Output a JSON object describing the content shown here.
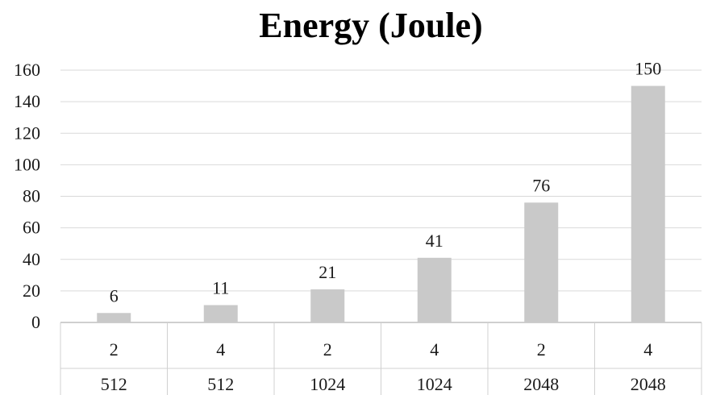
{
  "chart_data": {
    "type": "bar",
    "title": "Energy (Joule)",
    "xlabel": "",
    "ylabel": "",
    "ylim": [
      0,
      160
    ],
    "yticks": [
      0,
      20,
      40,
      60,
      80,
      100,
      120,
      140,
      160
    ],
    "grid": true,
    "legend": "none",
    "category_rows": [
      [
        "2",
        "4",
        "2",
        "4",
        "2",
        "4"
      ],
      [
        "512",
        "512",
        "1024",
        "1024",
        "2048",
        "2048"
      ]
    ],
    "series": [
      {
        "values": [
          6,
          11,
          21,
          41,
          76,
          150
        ],
        "labels": [
          "6",
          "11",
          "21",
          "41",
          "76",
          "150"
        ],
        "color": "#c9c9c9"
      }
    ]
  }
}
